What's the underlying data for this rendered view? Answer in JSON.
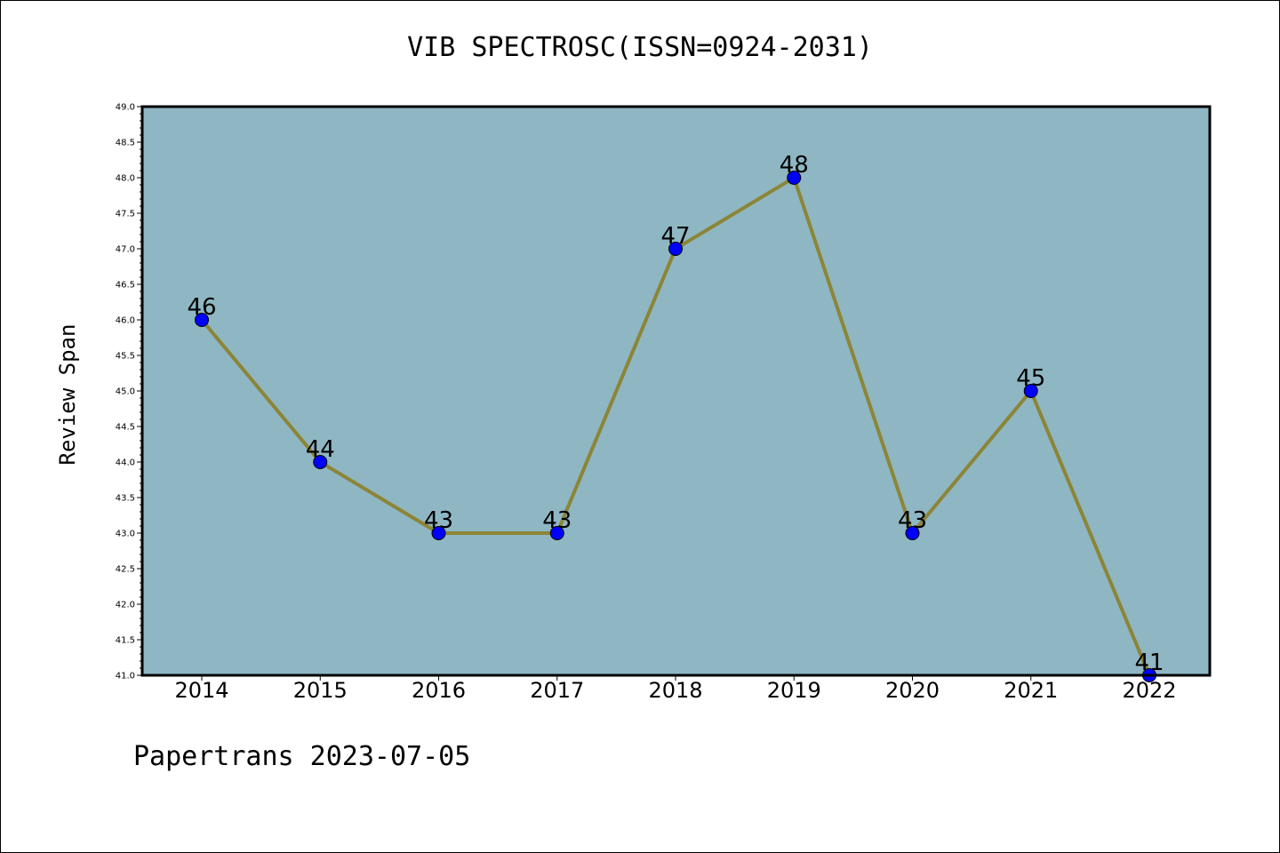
{
  "footer": {
    "text": "Papertrans 2023-07-05"
  },
  "colors": {
    "plot_background": "#8fb6c3",
    "line": "#8b8536",
    "marker": "#0000ff",
    "axis": "#000000"
  },
  "chart_data": {
    "type": "line",
    "title": "VIB SPECTROSC(ISSN=0924-2031)",
    "xlabel": "",
    "ylabel": "Review Span",
    "categories": [
      "2014",
      "2015",
      "2016",
      "2017",
      "2018",
      "2019",
      "2020",
      "2021",
      "2022"
    ],
    "series": [
      {
        "values": [
          46,
          44,
          43,
          43,
          47,
          48,
          43,
          45,
          41
        ],
        "data_labels": [
          "46",
          "44",
          "43",
          "43",
          "47",
          "48",
          "43",
          "45",
          "41"
        ]
      }
    ],
    "ylim": [
      41.0,
      49.0
    ],
    "y_major_step": 0.5,
    "y_minor_step": 0.1,
    "y_tick_labels": [
      "41.0",
      "41.5",
      "42.0",
      "42.5",
      "43.0",
      "43.5",
      "44.0",
      "44.5",
      "45.0",
      "45.5",
      "46.0",
      "46.5",
      "47.0",
      "47.5",
      "48.0",
      "48.5",
      "49.0"
    ],
    "grid": false,
    "legend": "none"
  }
}
